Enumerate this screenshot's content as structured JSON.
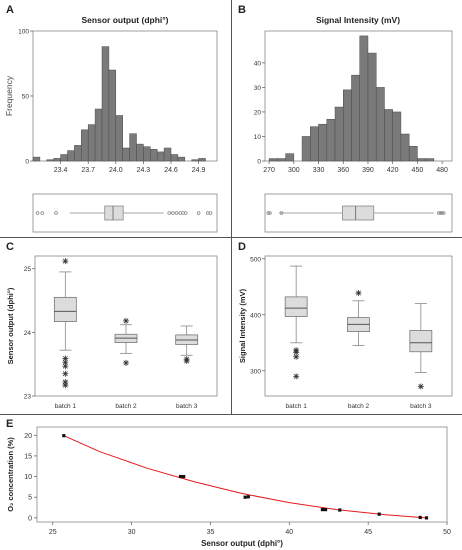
{
  "panels": {
    "a": "A",
    "b": "B",
    "c": "C",
    "d": "D",
    "e": "E"
  },
  "colors": {
    "bar": "#7a7a7a",
    "bar_edge": "#4a4a4a",
    "box": "#dcdcdc",
    "curve": "#e41a1c",
    "frame": "#888888"
  },
  "chart_data": [
    {
      "id": "A",
      "type": "bar",
      "title": "Sensor output (dphi°)",
      "ylabel": "Frequency",
      "xlabel": "",
      "x_ticks": [
        "23.4",
        "23.7",
        "24.0",
        "24.3",
        "24.6",
        "24.9"
      ],
      "x_tick_values": [
        23.4,
        23.7,
        24.0,
        24.3,
        24.6,
        24.9
      ],
      "y_ticks": [
        0,
        50,
        100
      ],
      "xlim": [
        23.1,
        25.1
      ],
      "ylim": [
        0,
        100
      ],
      "bin_width": 0.075,
      "bin_starts": [
        23.1,
        23.175,
        23.25,
        23.325,
        23.4,
        23.475,
        23.55,
        23.625,
        23.7,
        23.775,
        23.85,
        23.925,
        24.0,
        24.075,
        24.15,
        24.225,
        24.3,
        24.375,
        24.45,
        24.525,
        24.6,
        24.675,
        24.75,
        24.825,
        24.9,
        24.975
      ],
      "values": [
        3,
        0,
        1,
        2,
        5,
        8,
        12,
        24,
        28,
        40,
        88,
        70,
        35,
        10,
        21,
        13,
        11,
        9,
        7,
        10,
        5,
        3,
        0,
        1,
        2,
        0
      ],
      "boxplot": {
        "min": 23.5,
        "q1": 23.88,
        "median": 23.97,
        "q3": 24.08,
        "max": 24.52,
        "outliers": [
          23.15,
          23.2,
          23.35,
          24.58,
          24.62,
          24.66,
          24.7,
          24.73,
          24.76,
          24.9,
          25.0,
          25.03
        ]
      }
    },
    {
      "id": "B",
      "type": "bar",
      "title": "Signal Intensity (mV)",
      "ylabel": "",
      "xlabel": "",
      "x_ticks": [
        "270",
        "300",
        "330",
        "360",
        "390",
        "420",
        "450",
        "480"
      ],
      "x_tick_values": [
        270,
        300,
        330,
        360,
        390,
        420,
        450,
        480
      ],
      "y_ticks": [
        0,
        10,
        20,
        30,
        40
      ],
      "xlim": [
        265,
        492
      ],
      "ylim": [
        0,
        53
      ],
      "bin_width": 10,
      "bin_starts": [
        270,
        280,
        290,
        300,
        310,
        320,
        330,
        340,
        350,
        360,
        370,
        380,
        390,
        400,
        410,
        420,
        430,
        440,
        450,
        460,
        470,
        480
      ],
      "values": [
        1,
        1,
        3,
        0,
        10,
        14,
        15,
        17,
        22,
        29,
        35,
        51,
        44,
        30,
        21,
        20,
        11,
        6,
        1,
        1,
        0,
        0
      ],
      "boxplot": {
        "min": 282,
        "q1": 359,
        "median": 375,
        "q3": 397,
        "max": 470,
        "outliers": [
          269,
          271,
          285,
          476,
          478,
          480,
          482
        ]
      }
    },
    {
      "id": "C",
      "type": "box",
      "title": "",
      "ylabel": "Sensor output (dphi°)",
      "categories": [
        "batch 1",
        "batch 2",
        "batch 3"
      ],
      "y_ticks": [
        23,
        24,
        25
      ],
      "ylim": [
        23.0,
        25.2
      ],
      "boxes": [
        {
          "min": 23.72,
          "q1": 24.17,
          "median": 24.33,
          "q3": 24.55,
          "max": 24.95,
          "outliers": [
            25.12,
            23.59,
            23.53,
            23.47,
            23.35,
            23.22,
            23.17
          ]
        },
        {
          "min": 23.67,
          "q1": 23.84,
          "median": 23.91,
          "q3": 23.97,
          "max": 24.12,
          "outliers": [
            24.18,
            23.52
          ]
        },
        {
          "min": 23.64,
          "q1": 23.81,
          "median": 23.88,
          "q3": 23.96,
          "max": 24.1,
          "outliers": [
            23.58,
            23.55
          ]
        }
      ]
    },
    {
      "id": "D",
      "type": "box",
      "title": "",
      "ylabel": "Signal Intensity (mV)",
      "categories": [
        "batch 1",
        "batch 2",
        "batch 3"
      ],
      "y_ticks": [
        300,
        400,
        500
      ],
      "ylim": [
        255,
        505
      ],
      "boxes": [
        {
          "min": 350,
          "q1": 397,
          "median": 412,
          "q3": 432,
          "max": 487,
          "outliers": [
            337,
            333,
            325,
            290
          ]
        },
        {
          "min": 345,
          "q1": 370,
          "median": 383,
          "q3": 395,
          "max": 425,
          "outliers": [
            439
          ]
        },
        {
          "min": 297,
          "q1": 334,
          "median": 350,
          "q3": 372,
          "max": 420,
          "outliers": [
            272
          ]
        }
      ]
    },
    {
      "id": "E",
      "type": "scatter",
      "title": "",
      "xlabel": "Sensor output (dphi°)",
      "ylabel": "O₂ concentration (%)",
      "x_ticks": [
        25,
        30,
        35,
        40,
        45,
        50
      ],
      "y_ticks": [
        0,
        5,
        10,
        15,
        20
      ],
      "xlim": [
        24,
        50
      ],
      "ylim": [
        -1,
        22
      ],
      "x": [
        25.7,
        33.1,
        33.3,
        37.2,
        37.4,
        42.1,
        42.3,
        43.2,
        45.7,
        48.3,
        48.7
      ],
      "y": [
        19.9,
        10.0,
        10.0,
        5.0,
        5.1,
        2.0,
        2.0,
        1.9,
        0.9,
        0.1,
        0.0
      ],
      "fit_curve": {
        "x": [
          25.7,
          28,
          31,
          34,
          37,
          40,
          43,
          46,
          48.7
        ],
        "y": [
          19.9,
          16.0,
          12.0,
          8.7,
          5.9,
          3.7,
          2.0,
          0.8,
          0.0
        ]
      }
    }
  ]
}
